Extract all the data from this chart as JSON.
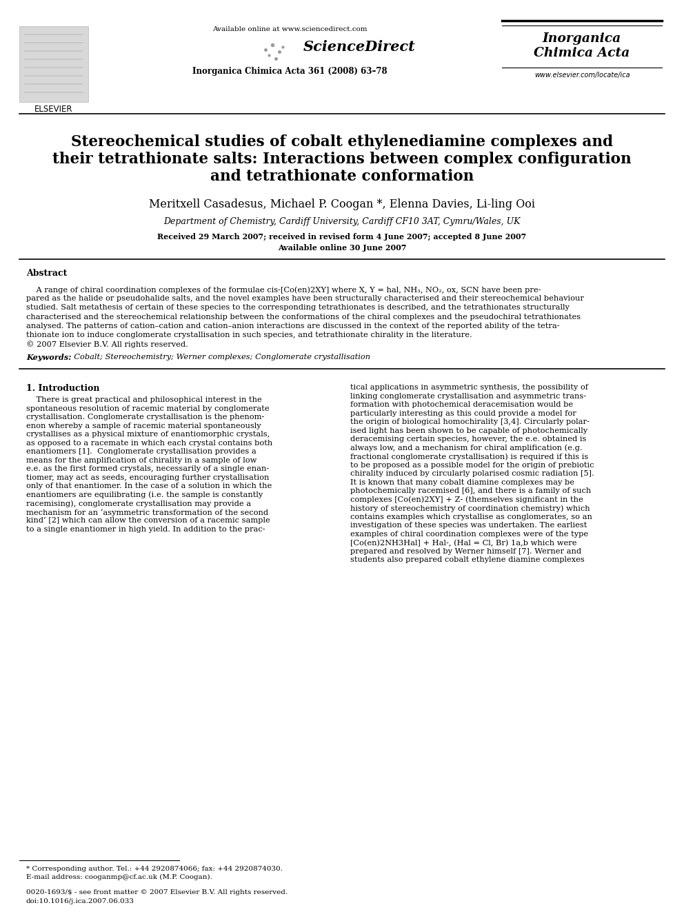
{
  "bg_color": "#ffffff",
  "title_line1": "Stereochemical studies of cobalt ethylenediamine complexes and",
  "title_line2": "their tetrathionate salts: Interactions between complex configuration",
  "title_line3": "and tetrathionate conformation",
  "authors": "Meritxell Casadesus, Michael P. Coogan *, Elenna Davies, Li-ling Ooi",
  "affiliation": "Department of Chemistry, Cardiff University, Cardiff CF10 3AT, Cymru/Wales, UK",
  "received": "Received 29 March 2007; received in revised form 4 June 2007; accepted 8 June 2007",
  "available": "Available online 30 June 2007",
  "header_available": "Available online at www.sciencedirect.com",
  "journal_info": "Inorganica Chimica Acta 361 (2008) 63–78",
  "journal_name_line1": "Inorganica",
  "journal_name_line2": "Chimica Acta",
  "website": "www.elsevier.com/locate/ica",
  "elsevier_label": "ELSEVIER",
  "abstract_title": "Abstract",
  "keywords_label": "Keywords:",
  "keywords_text": "  Cobalt; Stereochemistry; Werner complexes; Conglomerate crystallisation",
  "section1_title": "1. Introduction",
  "footnote_line1": "* Corresponding author. Tel.: +44 2920874066; fax: +44 2920874030.",
  "footnote_line2": "E-mail address: cooganmp@cf.ac.uk (M.P. Coogan).",
  "copyright_line1": "0020-1693/$ - see front matter © 2007 Elsevier B.V. All rights reserved.",
  "copyright_line2": "doi:10.1016/j.ica.2007.06.033",
  "abs_lines": [
    "    A range of chiral coordination complexes of the formulae cis-[Co(en)2XY] where X, Y = hal, NH₃, NO₂, ox, SCN have been pre-",
    "pared as the halide or pseudohalide salts, and the novel examples have been structurally characterised and their stereochemical behaviour",
    "studied. Salt metathesis of certain of these species to the corresponding tetrathionates is described, and the tetrathionates structurally",
    "characterised and the stereochemical relationship between the conformations of the chiral complexes and the pseudochiral tetrathionates",
    "analysed. The patterns of cation–cation and cation–anion interactions are discussed in the context of the reported ability of the tetra-",
    "thionate ion to induce conglomerate crystallisation in such species, and tetrathionate chirality in the literature.",
    "© 2007 Elsevier B.V. All rights reserved."
  ],
  "col1_lines": [
    "    There is great practical and philosophical interest in the",
    "spontaneous resolution of racemic material by conglomerate",
    "crystallisation. Conglomerate crystallisation is the phenom-",
    "enon whereby a sample of racemic material spontaneously",
    "crystallises as a physical mixture of enantiomorphic crystals,",
    "as opposed to a racemate in which each crystal contains both",
    "enantiomers [1].  Conglomerate crystallisation provides a",
    "means for the amplification of chirality in a sample of low",
    "e.e. as the first formed crystals, necessarily of a single enan-",
    "tiomer, may act as seeds, encouraging further crystallisation",
    "only of that enantiomer. In the case of a solution in which the",
    "enantiomers are equilibrating (i.e. the sample is constantly",
    "racemising), conglomerate crystallisation may provide a",
    "mechanism for an ‘asymmetric transformation of the second",
    "kind’ [2] which can allow the conversion of a racemic sample",
    "to a single enantiomer in high yield. In addition to the prac-"
  ],
  "col2_lines": [
    "tical applications in asymmetric synthesis, the possibility of",
    "linking conglomerate crystallisation and asymmetric trans-",
    "formation with photochemical deracemisation would be",
    "particularly interesting as this could provide a model for",
    "the origin of biological homochirality [3,4]. Circularly polar-",
    "ised light has been shown to be capable of photochemically",
    "deracemising certain species, however, the e.e. obtained is",
    "always low, and a mechanism for chiral amplification (e.g.",
    "fractional conglomerate crystallisation) is required if this is",
    "to be proposed as a possible model for the origin of prebiotic",
    "chirality induced by circularly polarised cosmic radiation [5].",
    "It is known that many cobalt diamine complexes may be",
    "photochemically racemised [6], and there is a family of such",
    "complexes [Co(en)2XY] + Z- (themselves significant in the",
    "history of stereochemistry of coordination chemistry) which",
    "contains examples which crystallise as conglomerates, so an",
    "investigation of these species was undertaken. The earliest",
    "examples of chiral coordination complexes were of the type",
    "[Co(en)2NH3Hal] + Hal-, (Hal = Cl, Br) 1a,b which were",
    "prepared and resolved by Werner himself [7]. Werner and",
    "students also prepared cobalt ethylene diamine complexes"
  ]
}
